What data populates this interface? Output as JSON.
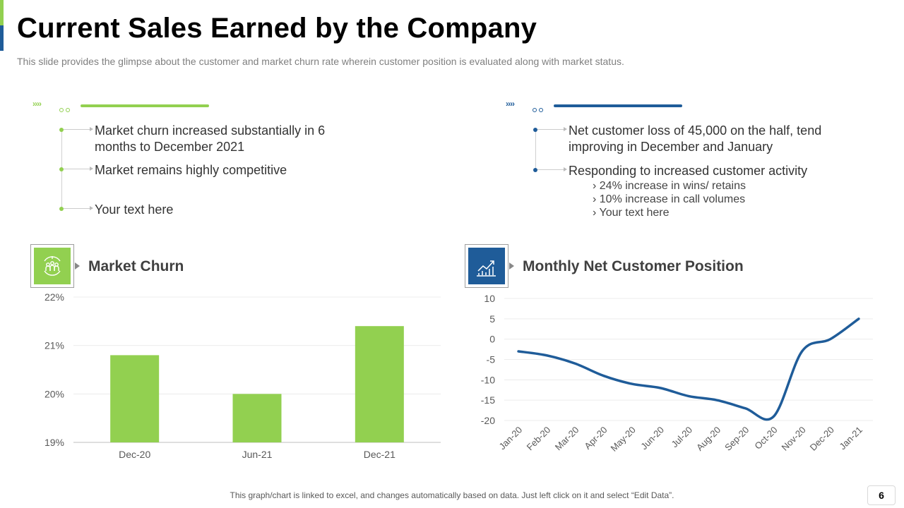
{
  "slide": {
    "title": "Current Sales Earned by the Company",
    "subtitle": "This slide provides the glimpse about the customer and market churn rate wherein customer position is evaluated along with market status.",
    "footer_note": "This graph/chart is linked to excel,  and changes automatically based on data. Just left click on it and select “Edit Data”.",
    "page_number": "6"
  },
  "colors": {
    "green": "#92d050",
    "blue": "#1f5c99",
    "accent_green_bar": "#92d050",
    "accent_blue_bar": "#1f5c99"
  },
  "left_panel": {
    "bullets": [
      {
        "text": "Market churn increased substantially in 6\nmonths to December 2021"
      },
      {
        "text": "Market remains highly competitive"
      },
      {
        "text": "Your text here"
      }
    ]
  },
  "right_panel": {
    "bullets": [
      {
        "text": "Net customer loss of 45,000 on the half, tend\nimproving in December and January"
      },
      {
        "text": "Responding to increased customer activity"
      }
    ],
    "sub_items": [
      "24% increase in wins/ retains",
      "10% increase in call volumes",
      "Your text here"
    ]
  },
  "decor": {
    "chevrons": "››››"
  },
  "icons": {
    "market_churn": "people-scan-icon",
    "net_customer": "rising-line-chart-icon"
  },
  "chart_data": [
    {
      "type": "bar",
      "title": "Market Churn",
      "categories": [
        "Dec-20",
        "Jun-21",
        "Dec-21"
      ],
      "values": [
        20.8,
        20.0,
        21.4
      ],
      "ylim": [
        19,
        22
      ],
      "yticks": [
        19,
        20,
        21,
        22
      ],
      "ytick_labels": [
        "19%",
        "20%",
        "21%",
        "22%"
      ],
      "xlabel": "",
      "ylabel": "",
      "grid": true,
      "color": "#92d050"
    },
    {
      "type": "line",
      "title": "Monthly Net Customer Position",
      "categories": [
        "Jan-20",
        "Feb-20",
        "Mar-20",
        "Apr-20",
        "May-20",
        "Jun-20",
        "Jul-20",
        "Aug-20",
        "Sep-20",
        "Oct-20",
        "Nov-20",
        "Dec-20",
        "Jan-21"
      ],
      "values": [
        -3,
        -4,
        -6,
        -9,
        -11,
        -12,
        -14,
        -15,
        -17,
        -19,
        -3,
        0,
        5
      ],
      "ylim": [
        -20,
        10
      ],
      "yticks": [
        -20,
        -15,
        -10,
        -5,
        0,
        5,
        10
      ],
      "ytick_labels": [
        "-20",
        "-15",
        "-10",
        "-5",
        "0",
        "5",
        "10"
      ],
      "xlabel": "",
      "ylabel": "",
      "grid": true,
      "color": "#1f5c99"
    }
  ]
}
